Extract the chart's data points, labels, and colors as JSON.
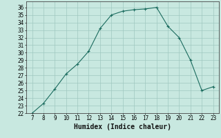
{
  "x": [
    7,
    8,
    9,
    10,
    11,
    12,
    13,
    14,
    15,
    16,
    17,
    18,
    19,
    20,
    21,
    22,
    23
  ],
  "y": [
    22,
    23.3,
    25.2,
    27.2,
    28.5,
    30.2,
    33.2,
    35.0,
    35.5,
    35.7,
    35.8,
    36.0,
    33.5,
    32.0,
    29.0,
    25.0,
    25.5
  ],
  "line_color": "#1a6b5e",
  "bg_color": "#c8e8e0",
  "grid_color": "#9fc8c0",
  "xlabel": "Humidex (Indice chaleur)",
  "xlim": [
    6.5,
    23.5
  ],
  "ylim": [
    22,
    36.8
  ],
  "xticks": [
    7,
    8,
    9,
    10,
    11,
    12,
    13,
    14,
    15,
    16,
    17,
    18,
    19,
    20,
    21,
    22,
    23
  ],
  "yticks": [
    22,
    23,
    24,
    25,
    26,
    27,
    28,
    29,
    30,
    31,
    32,
    33,
    34,
    35,
    36
  ],
  "label_fontsize": 7,
  "tick_fontsize": 5.5
}
